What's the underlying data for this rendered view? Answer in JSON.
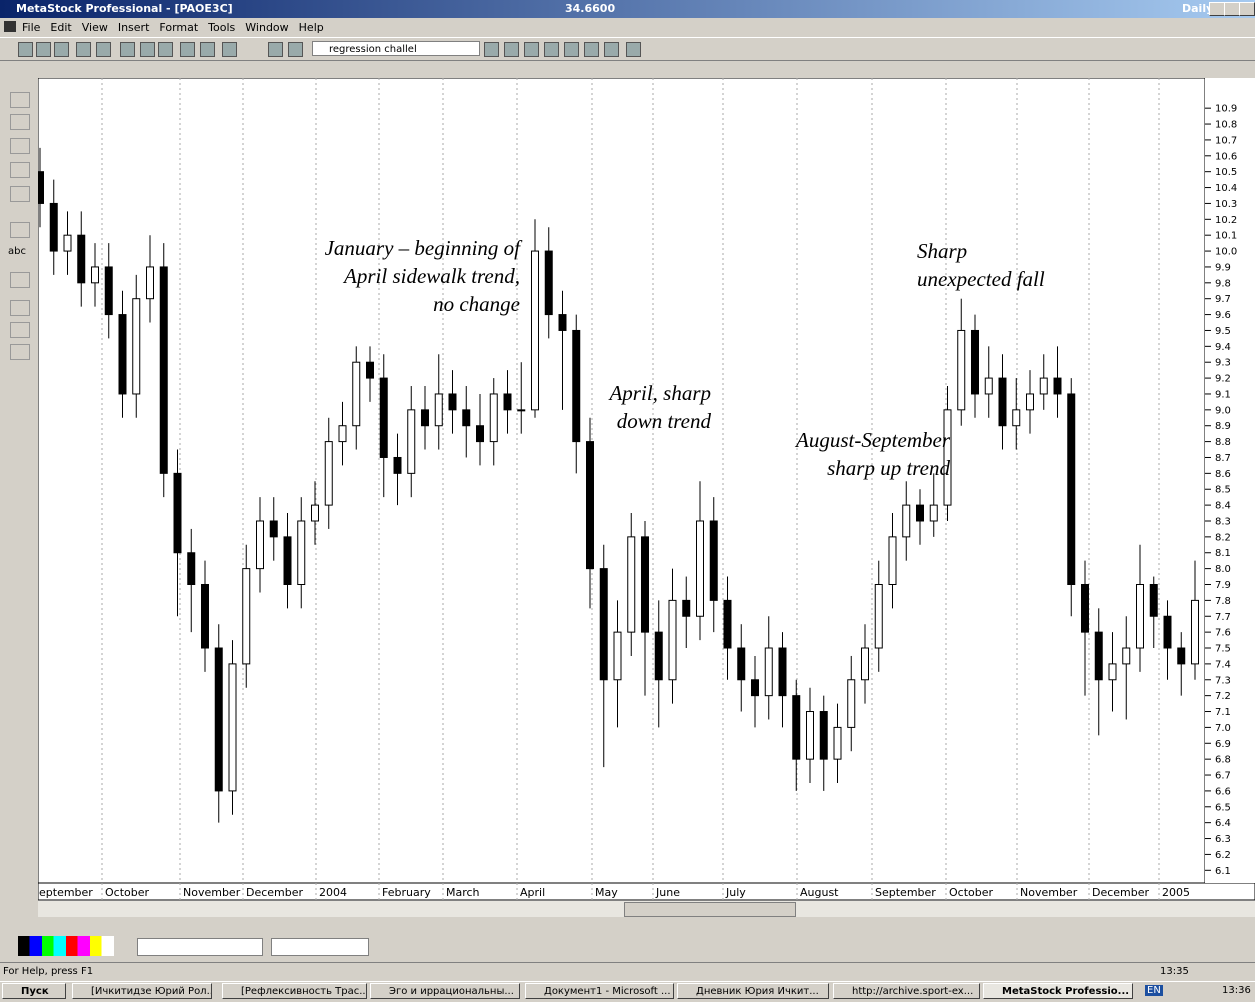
{
  "window": {
    "title": "MetaStock Professional - [PAOE3C]",
    "price": "34.6600",
    "period": "Daily",
    "menu": [
      "File",
      "Edit",
      "View",
      "Insert",
      "Format",
      "Tools",
      "Window",
      "Help"
    ],
    "expert": "regression challel",
    "tool_text": "abc",
    "status": "For Help, press F1",
    "status_time": "13:35"
  },
  "taskbar": {
    "start": "Пуск",
    "items": [
      "[Ичкитидзе Юрий Рол...",
      "[Рефлексивность Трас...",
      "Эго и иррациональны...",
      "Документ1 - Microsoft ...",
      "Дневник Юрия Ичкит...",
      "http://archive.sport-ex...",
      "MetaStock Professio..."
    ],
    "lang": "EN",
    "time": "13:36"
  },
  "chart_data": {
    "type": "candlestick",
    "months": [
      "eptember",
      "October",
      "November",
      "December",
      "2004",
      "February",
      "March",
      "April",
      "May",
      "June",
      "July",
      "August",
      "September",
      "October",
      "November",
      "December",
      "2005"
    ],
    "open": [
      10.5,
      10.3,
      10.0,
      10.1,
      9.8,
      9.9,
      9.6,
      9.1,
      9.7,
      9.9,
      8.6,
      8.1,
      7.9,
      7.5,
      6.6,
      7.4,
      8.0,
      8.3,
      8.2,
      7.9,
      8.3,
      8.4,
      8.8,
      8.9,
      9.3,
      9.2,
      8.7,
      8.6,
      9.0,
      8.9,
      9.1,
      9.0,
      8.9,
      8.8,
      9.1,
      9.0,
      9.0,
      10.0,
      9.6,
      9.5,
      8.8,
      8.0,
      7.3,
      7.6,
      8.2,
      7.6,
      7.3,
      7.8,
      7.7,
      8.3,
      7.8,
      7.5,
      7.3,
      7.2,
      7.5,
      7.2,
      6.8,
      7.1,
      6.8,
      7.0,
      7.3,
      7.5,
      7.9,
      8.2,
      8.4,
      8.3,
      8.4,
      9.0,
      9.5,
      9.1,
      9.2,
      8.9,
      9.0,
      9.1,
      9.2,
      9.1,
      7.9,
      7.6,
      7.3,
      7.4,
      7.5,
      7.9,
      7.7,
      7.5,
      7.4
    ],
    "high": [
      10.65,
      10.45,
      10.25,
      10.25,
      10.05,
      10.05,
      9.75,
      9.85,
      10.1,
      10.05,
      8.75,
      8.25,
      8.05,
      7.65,
      7.55,
      8.15,
      8.45,
      8.45,
      8.35,
      8.45,
      8.55,
      8.95,
      9.05,
      9.4,
      9.4,
      9.35,
      8.85,
      9.15,
      9.15,
      9.35,
      9.25,
      9.15,
      9.1,
      9.2,
      9.25,
      9.3,
      10.2,
      10.15,
      9.75,
      9.6,
      8.95,
      8.15,
      7.8,
      8.35,
      8.3,
      7.8,
      8.0,
      7.95,
      8.55,
      8.45,
      7.95,
      7.65,
      7.45,
      7.7,
      7.6,
      7.3,
      7.25,
      7.2,
      7.15,
      7.45,
      7.65,
      8.05,
      8.35,
      8.55,
      8.5,
      8.6,
      9.15,
      9.7,
      9.6,
      9.4,
      9.35,
      9.2,
      9.25,
      9.35,
      9.4,
      9.2,
      8.05,
      7.75,
      7.6,
      7.7,
      8.15,
      7.95,
      7.8,
      7.6,
      8.05
    ],
    "low": [
      10.15,
      9.85,
      9.85,
      9.65,
      9.65,
      9.45,
      8.95,
      8.95,
      9.55,
      8.45,
      7.7,
      7.6,
      7.35,
      6.4,
      6.45,
      7.25,
      7.85,
      8.05,
      7.75,
      7.75,
      8.15,
      8.25,
      8.65,
      8.75,
      9.05,
      8.45,
      8.4,
      8.45,
      8.75,
      8.75,
      8.85,
      8.7,
      8.65,
      8.65,
      8.85,
      8.85,
      8.95,
      9.45,
      9.0,
      8.6,
      7.75,
      6.75,
      7.0,
      7.45,
      7.2,
      7.0,
      7.15,
      7.5,
      7.55,
      7.6,
      7.3,
      7.1,
      7.0,
      7.05,
      7.0,
      6.6,
      6.65,
      6.6,
      6.65,
      6.85,
      7.15,
      7.35,
      7.75,
      8.05,
      8.15,
      8.2,
      8.3,
      8.9,
      8.95,
      8.95,
      8.75,
      8.75,
      8.85,
      9.0,
      8.95,
      7.7,
      7.2,
      6.95,
      7.1,
      7.05,
      7.35,
      7.5,
      7.3,
      7.2,
      7.3
    ],
    "close": [
      10.3,
      10.0,
      10.1,
      9.8,
      9.9,
      9.6,
      9.1,
      9.7,
      9.9,
      8.6,
      8.1,
      7.9,
      7.5,
      6.6,
      7.4,
      8.0,
      8.3,
      8.2,
      7.9,
      8.3,
      8.4,
      8.8,
      8.9,
      9.3,
      9.2,
      8.7,
      8.6,
      9.0,
      8.9,
      9.1,
      9.0,
      8.9,
      8.8,
      9.1,
      9.0,
      9.0,
      10.0,
      9.6,
      9.5,
      8.8,
      8.0,
      7.3,
      7.6,
      8.2,
      7.6,
      7.3,
      7.8,
      7.7,
      8.3,
      7.8,
      7.5,
      7.3,
      7.2,
      7.5,
      7.2,
      6.8,
      7.1,
      6.8,
      7.0,
      7.3,
      7.5,
      7.9,
      8.2,
      8.4,
      8.3,
      8.4,
      9.0,
      9.5,
      9.1,
      9.2,
      8.9,
      9.0,
      9.1,
      9.2,
      9.1,
      7.9,
      7.6,
      7.3,
      7.4,
      7.5,
      7.9,
      7.7,
      7.5,
      7.4,
      7.8
    ],
    "up_color": "#ffffff",
    "down_color": "#000000",
    "ylim": [
      6.02,
      11.09
    ],
    "yticks": [
      6.1,
      6.2,
      6.3,
      6.4,
      6.5,
      6.6,
      6.7,
      6.8,
      6.9,
      {
        "value": 7,
        "label": "7.0"
      },
      7.1,
      7.2,
      7.3,
      7.4,
      7.5,
      7.6,
      7.7,
      7.8,
      7.9,
      {
        "value": 8,
        "label": "8.0"
      },
      8.1,
      8.2,
      8.3,
      8.4,
      8.5,
      8.6,
      8.7,
      8.8,
      8.9,
      {
        "value": 9,
        "label": "9.0"
      },
      9.1,
      9.2,
      9.3,
      9.4,
      9.5,
      9.6,
      9.7,
      9.8,
      9.9,
      {
        "value": 10,
        "label": "10.0"
      },
      10.1,
      10.2,
      10.3,
      10.4,
      10.5,
      10.6,
      10.7,
      10.8,
      10.9
    ],
    "annotations": [
      [
        "January – beginning of",
        "April sidewalk trend,",
        "no change"
      ],
      [
        "April, sharp",
        "down trend"
      ],
      [
        "August-September",
        "sharp up trend"
      ],
      [
        "Sharp",
        "unexpected fall"
      ]
    ]
  }
}
